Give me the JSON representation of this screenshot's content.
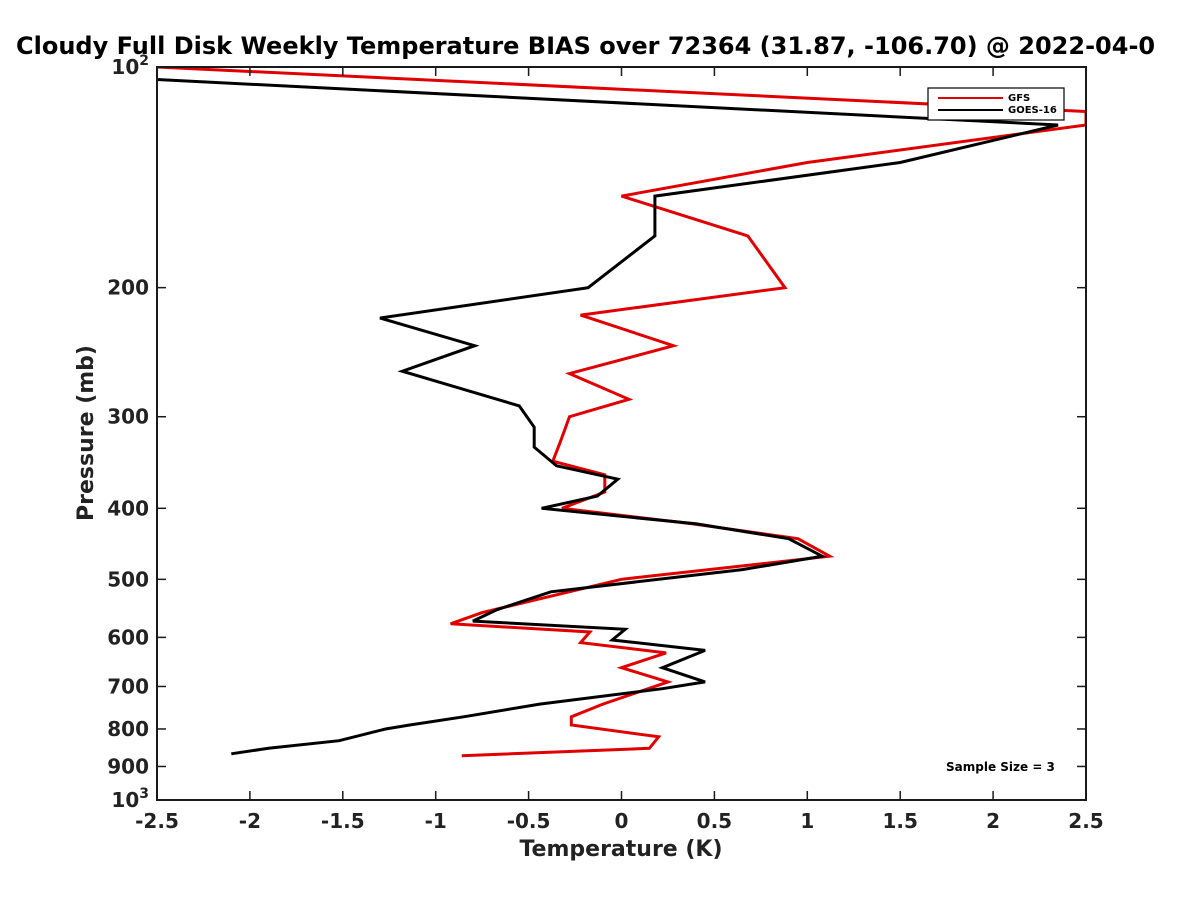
{
  "chart_data": {
    "type": "line",
    "title": "Cloudy Full Disk Weekly Temperature BIAS over 72364 (31.87, -106.70) @ 2022-04-0",
    "xlabel": "Temperature (K)",
    "ylabel": "Pressure (mb)",
    "xlim": [
      -2.5,
      2.5
    ],
    "ylim": [
      100,
      1000
    ],
    "y_scale": "log",
    "y_reversed": true,
    "x_ticks": [
      "-2.5",
      "-2",
      "-1.5",
      "-1",
      "-0.5",
      "0",
      "0.5",
      "1",
      "1.5",
      "2",
      "2.5"
    ],
    "y_ticks": [
      {
        "value": 100,
        "base": "10",
        "exp": "2"
      },
      {
        "value": 200,
        "label": "200"
      },
      {
        "value": 300,
        "label": "300"
      },
      {
        "value": 400,
        "label": "400"
      },
      {
        "value": 500,
        "label": "500"
      },
      {
        "value": 600,
        "label": "600"
      },
      {
        "value": 700,
        "label": "700"
      },
      {
        "value": 800,
        "label": "800"
      },
      {
        "value": 900,
        "label": "900"
      },
      {
        "value": 1000,
        "base": "10",
        "exp": "3"
      }
    ],
    "legend_position": "top-right",
    "annotation": "Sample Size = 3",
    "series": [
      {
        "name": "GFS",
        "color": "#e00000",
        "points": [
          [
            -2.5,
            100
          ],
          [
            2.5,
            115
          ],
          [
            2.5,
            120
          ],
          [
            1.0,
            135
          ],
          [
            0.0,
            150
          ],
          [
            0.68,
            170
          ],
          [
            0.88,
            200
          ],
          [
            -0.22,
            218
          ],
          [
            0.28,
            240
          ],
          [
            -0.28,
            262
          ],
          [
            0.04,
            284
          ],
          [
            -0.28,
            300
          ],
          [
            -0.33,
            325
          ],
          [
            -0.37,
            345
          ],
          [
            -0.09,
            360
          ],
          [
            -0.09,
            380
          ],
          [
            -0.32,
            400
          ],
          [
            0.38,
            420
          ],
          [
            0.95,
            440
          ],
          [
            1.12,
            465
          ],
          [
            0.0,
            500
          ],
          [
            -0.42,
            530
          ],
          [
            -0.75,
            555
          ],
          [
            -0.92,
            575
          ],
          [
            -0.17,
            590
          ],
          [
            -0.22,
            610
          ],
          [
            0.24,
            630
          ],
          [
            0.0,
            660
          ],
          [
            0.25,
            690
          ],
          [
            -0.1,
            740
          ],
          [
            -0.27,
            770
          ],
          [
            -0.27,
            790
          ],
          [
            0.2,
            820
          ],
          [
            0.15,
            850
          ],
          [
            -0.86,
            870
          ]
        ]
      },
      {
        "name": "GOES-16",
        "color": "#000000",
        "points": [
          [
            -2.5,
            104
          ],
          [
            2.35,
            120
          ],
          [
            1.5,
            135
          ],
          [
            0.18,
            150
          ],
          [
            0.18,
            170
          ],
          [
            -0.18,
            200
          ],
          [
            -1.3,
            220
          ],
          [
            -0.79,
            240
          ],
          [
            -1.18,
            260
          ],
          [
            -0.55,
            290
          ],
          [
            -0.47,
            310
          ],
          [
            -0.47,
            330
          ],
          [
            -0.35,
            350
          ],
          [
            -0.02,
            365
          ],
          [
            -0.13,
            385
          ],
          [
            -0.43,
            400
          ],
          [
            0.4,
            420
          ],
          [
            0.9,
            440
          ],
          [
            1.08,
            465
          ],
          [
            0.65,
            485
          ],
          [
            -0.38,
            520
          ],
          [
            -0.67,
            550
          ],
          [
            -0.8,
            570
          ],
          [
            0.02,
            585
          ],
          [
            -0.05,
            605
          ],
          [
            0.45,
            625
          ],
          [
            0.22,
            660
          ],
          [
            0.45,
            690
          ],
          [
            0.22,
            705
          ],
          [
            -0.44,
            740
          ],
          [
            -0.85,
            770
          ],
          [
            -1.14,
            790
          ],
          [
            -1.27,
            800
          ],
          [
            -1.52,
            830
          ],
          [
            -1.9,
            850
          ],
          [
            -2.1,
            865
          ]
        ]
      }
    ]
  }
}
